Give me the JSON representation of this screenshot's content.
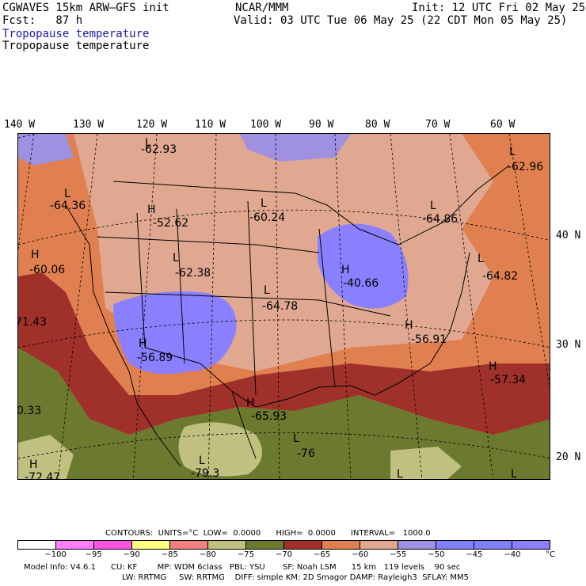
{
  "header": {
    "model": "CGWAVES 15km ARW–GFS init",
    "fcst": "Fcst:   87 h",
    "center": "NCAR/MMM",
    "init": "Init: 12 UTC Fri 02 May 25",
    "valid": "Valid: 03 UTC Tue 06 May 25 (22 CDT Mon 05 May 25)",
    "field_colored": "Tropopause temperature",
    "field_plain": "Tropopause temperature"
  },
  "longitude_labels": [
    "140 W",
    "130 W",
    "120 W",
    "110 W",
    "100 W",
    "90 W",
    "80 W",
    "70 W",
    "60 W"
  ],
  "latitude_labels": [
    "40 N",
    "30 N",
    "20 N"
  ],
  "map_labels": [
    {
      "kind": "L",
      "text": "-62.93"
    },
    {
      "kind": "L",
      "text": "-64.36"
    },
    {
      "kind": "H",
      "text": "-52.62"
    },
    {
      "kind": "L",
      "text": "-60.24"
    },
    {
      "kind": "L",
      "text": "-64.86"
    },
    {
      "kind": "L",
      "text": "-62.96"
    },
    {
      "kind": "H",
      "text": "-60.06"
    },
    {
      "kind": "L",
      "text": "-62.38"
    },
    {
      "kind": "H",
      "text": "-40.66"
    },
    {
      "kind": "L",
      "text": "-64.82"
    },
    {
      "kind": "L",
      "text": "-64.78"
    },
    {
      "kind": "",
      "text": "71.43"
    },
    {
      "kind": "H",
      "text": "-56.89"
    },
    {
      "kind": "H",
      "text": "-56.91"
    },
    {
      "kind": "H",
      "text": "-57.34"
    },
    {
      "kind": "H",
      "text": "-65.93"
    },
    {
      "kind": "",
      "text": "0.33"
    },
    {
      "kind": "L",
      "text": "-76"
    },
    {
      "kind": "L",
      "text": "-79.3"
    },
    {
      "kind": "H",
      "text": "-72.47"
    },
    {
      "kind": "L",
      "text": ""
    },
    {
      "kind": "L",
      "text": ""
    }
  ],
  "contours": {
    "line": "CONTOURS:  UNITS=°C  LOW=  0.0000      HIGH=  0.0000      INTERVAL=   1000.0"
  },
  "colorbar": {
    "colors": [
      "#ffffff",
      "#ff80ff",
      "#ff55e0",
      "#ffff80",
      "#f08080",
      "#c0c080",
      "#6b7a2e",
      "#a0302a",
      "#e08050",
      "#e0a890",
      "#a090e0",
      "#8080ff",
      "#8080ff",
      "#8a80ff"
    ],
    "ticks": [
      "−100",
      "−95",
      "−90",
      "−85",
      "−80",
      "−75",
      "−70",
      "−65",
      "−60",
      "−55",
      "−50",
      "−45",
      "−40"
    ],
    "units": "°C"
  },
  "footer": {
    "line1": "Model Info: V4.6.1      CU: KF        MP: WDM 6class   PBL: YSU       SF: Noah LSM      15 km   119 levels    90 sec",
    "line2": "LW: RRTMG     SW: RRTMG    DIFF: simple KM: 2D Smagor DAMP: Rayleigh3  SFLAY: MM5"
  }
}
